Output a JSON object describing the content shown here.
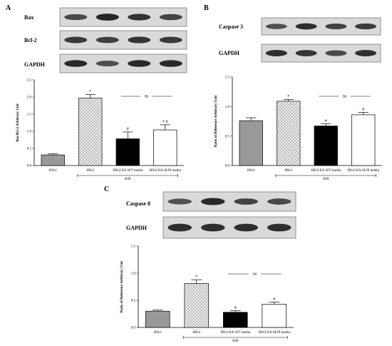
{
  "panels": [
    {
      "letter": "A",
      "blots": [
        "Bax",
        "Bcl-2",
        "GAPDH"
      ],
      "bracket_label": "H/R",
      "chart": {
        "type": "bar",
        "ylabel": "Bax/Bcl-2 Arbitrary Unit",
        "ylim": [
          0,
          2.5
        ],
        "yticks": [
          0.0,
          0.5,
          1.0,
          1.5,
          2.0,
          2.5
        ],
        "ytick_labels": [
          "0.0",
          "0.5",
          "1.0",
          "1.5",
          "2.0",
          "2.5"
        ],
        "categories": [
          "H9c2",
          "H9c2",
          "H9c2:EA-WT media",
          "H9c2:EA-SLPI media"
        ],
        "values": [
          0.31,
          1.97,
          0.78,
          1.04
        ],
        "errors": [
          0.03,
          0.1,
          0.2,
          0.15
        ],
        "sig_marks": [
          "",
          "*",
          "#",
          "* #"
        ],
        "ns_label": "ns"
      }
    },
    {
      "letter": "B",
      "blots": [
        "Caspase 3",
        "GAPDH"
      ],
      "bracket_label": "H/R",
      "chart": {
        "type": "bar",
        "ylabel": "Ratio of Reference Arbitrary Unit",
        "ylim": [
          0,
          1.5
        ],
        "yticks": [
          0.0,
          0.5,
          1.0,
          1.5
        ],
        "ytick_labels": [
          "0.0",
          "0.5",
          "1.0",
          "1.5"
        ],
        "categories": [
          "H9c2",
          "H9c2",
          "H9c2:EA-WT media",
          "H9c2:EA-SLPI media"
        ],
        "values": [
          0.76,
          1.09,
          0.67,
          0.86
        ],
        "errors": [
          0.05,
          0.03,
          0.04,
          0.04
        ],
        "sig_marks": [
          "",
          "*",
          "#",
          "#"
        ],
        "ns_label": "ns"
      }
    },
    {
      "letter": "C",
      "blots": [
        "Caspase 8",
        "GAPDH"
      ],
      "bracket_label": "H/R",
      "chart": {
        "type": "bar",
        "ylabel": "Ratio of Reference Arbitrary Unit",
        "ylim": [
          0,
          1.5
        ],
        "yticks": [
          0.0,
          0.5,
          1.0,
          1.5
        ],
        "ytick_labels": [
          "0.0",
          "0.5",
          "1.0",
          "1.5"
        ],
        "categories": [
          "H9c2",
          "H9c2",
          "H9c2:EA-WT media",
          "H9c2:EA-SLPI media"
        ],
        "values": [
          0.3,
          0.81,
          0.28,
          0.43
        ],
        "errors": [
          0.02,
          0.07,
          0.03,
          0.04
        ],
        "sig_marks": [
          "",
          "*",
          "#",
          "#"
        ],
        "ns_label": "ns"
      }
    }
  ],
  "chart_data": [
    {
      "type": "bar",
      "title": "",
      "xlabel": "",
      "ylabel": "Bax/Bcl-2 Arbitrary Unit",
      "categories": [
        "H9c2",
        "H9c2",
        "H9c2:EA-WT media",
        "H9c2:EA-SLPI media"
      ],
      "values": [
        0.31,
        1.97,
        0.78,
        1.04
      ],
      "ylim": [
        0,
        2.5
      ],
      "grid": false
    },
    {
      "type": "bar",
      "title": "",
      "xlabel": "",
      "ylabel": "Ratio of Reference Arbitrary Unit",
      "categories": [
        "H9c2",
        "H9c2",
        "H9c2:EA-WT media",
        "H9c2:EA-SLPI media"
      ],
      "values": [
        0.76,
        1.09,
        0.67,
        0.86
      ],
      "ylim": [
        0,
        1.5
      ],
      "grid": false
    },
    {
      "type": "bar",
      "title": "",
      "xlabel": "",
      "ylabel": "Ratio of Reference Arbitrary Unit",
      "categories": [
        "H9c2",
        "H9c2",
        "H9c2:EA-WT media",
        "H9c2:EA-SLPI media"
      ],
      "values": [
        0.3,
        0.81,
        0.28,
        0.43
      ],
      "ylim": [
        0,
        1.5
      ],
      "grid": false
    }
  ],
  "colors": {
    "control_bar": "#999999",
    "hr_bar_hatch": "#a8a8a8",
    "wt_bar": "#000000",
    "slpi_bar": "#ffffff",
    "blot_bg": "#d9d9d9",
    "band": "#202020"
  }
}
